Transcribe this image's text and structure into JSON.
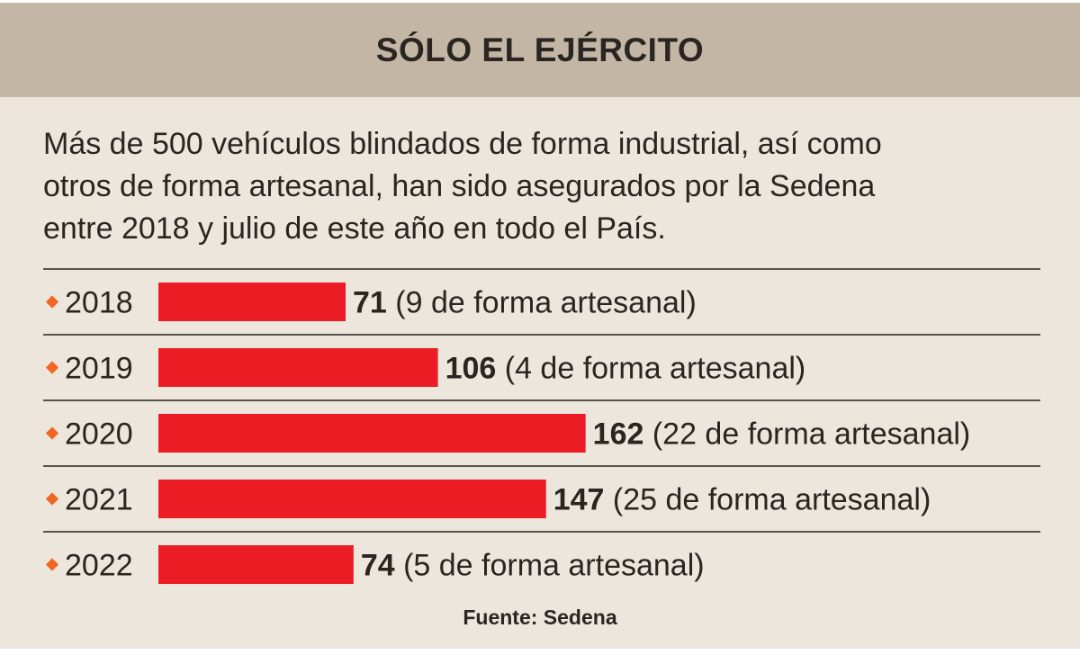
{
  "title": "SÓLO EL EJÉRCITO",
  "description_lines": [
    "Más de 500 vehículos blindados de forma industrial, así como",
    "otros de forma artesanal, han sido asegurados por la Sedena",
    "entre 2018 y julio de este año en todo el País."
  ],
  "source": "Fuente: Sedena",
  "colors": {
    "bar": "#ec1c24",
    "bullet": "#f26522",
    "header_bg": "#c4b6a5",
    "card_bg": "#ece6dd",
    "rule": "#5a524c"
  },
  "chart_data": {
    "type": "bar",
    "orientation": "horizontal",
    "categories": [
      "2018",
      "2019",
      "2020",
      "2021",
      "2022"
    ],
    "values": [
      71,
      106,
      162,
      147,
      74
    ],
    "annotations": [
      "(9 de forma artesanal)",
      "(4 de forma artesanal)",
      "(22 de forma artesanal)",
      "(25 de forma artesanal)",
      "(5 de forma artesanal)"
    ],
    "title": "SÓLO EL EJÉRCITO",
    "xlabel": "",
    "ylabel": "",
    "grid": false,
    "legend": "none"
  }
}
